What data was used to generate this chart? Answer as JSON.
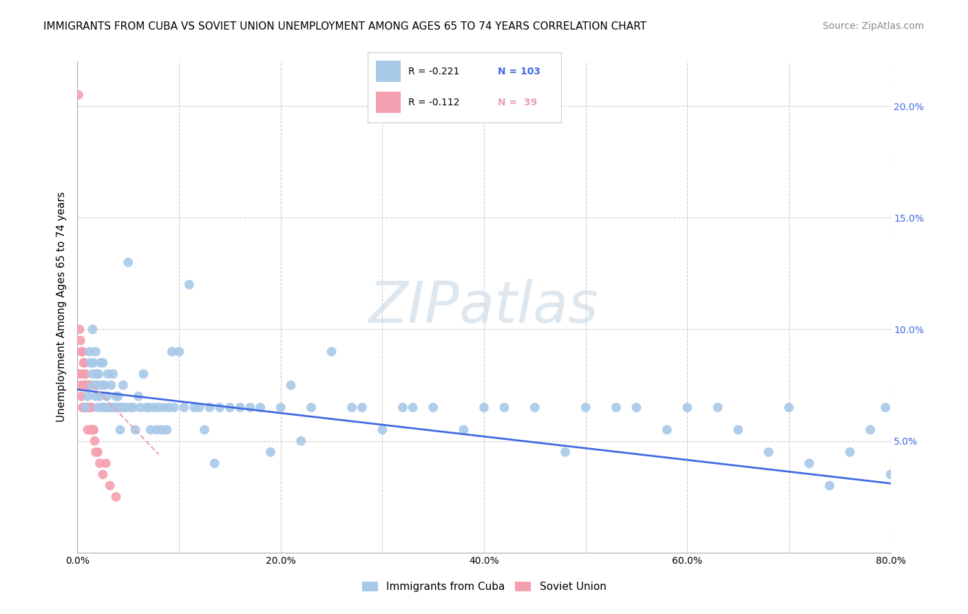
{
  "title": "IMMIGRANTS FROM CUBA VS SOVIET UNION UNEMPLOYMENT AMONG AGES 65 TO 74 YEARS CORRELATION CHART",
  "source": "Source: ZipAtlas.com",
  "ylabel": "Unemployment Among Ages 65 to 74 years",
  "watermark": "ZIPatlas",
  "xlim": [
    0.0,
    0.8
  ],
  "ylim": [
    0.0,
    0.22
  ],
  "xticks": [
    0.0,
    0.1,
    0.2,
    0.3,
    0.4,
    0.5,
    0.6,
    0.7,
    0.8
  ],
  "xticklabels": [
    "0.0%",
    "",
    "20.0%",
    "",
    "40.0%",
    "",
    "60.0%",
    "",
    "80.0%"
  ],
  "yticks": [
    0.0,
    0.05,
    0.1,
    0.15,
    0.2
  ],
  "yticklabels_left": [
    "",
    "",
    "",
    "",
    ""
  ],
  "yticklabels_right": [
    "",
    "5.0%",
    "10.0%",
    "15.0%",
    "20.0%"
  ],
  "legend_cuba_R": "R = -0.221",
  "legend_cuba_N": "N = 103",
  "legend_soviet_R": "R = -0.112",
  "legend_soviet_N": "N =  39",
  "cuba_color": "#a8c8e8",
  "soviet_color": "#f4a0b0",
  "cuba_line_color": "#4169e1",
  "soviet_line_color": "#e8a0b0",
  "background_color": "#ffffff",
  "grid_color": "#cccccc",
  "cuba_x": [
    0.008,
    0.01,
    0.012,
    0.013,
    0.014,
    0.015,
    0.015,
    0.016,
    0.017,
    0.018,
    0.018,
    0.019,
    0.02,
    0.02,
    0.021,
    0.022,
    0.023,
    0.024,
    0.025,
    0.025,
    0.026,
    0.027,
    0.028,
    0.029,
    0.03,
    0.031,
    0.033,
    0.034,
    0.035,
    0.036,
    0.038,
    0.039,
    0.04,
    0.041,
    0.042,
    0.043,
    0.045,
    0.046,
    0.048,
    0.05,
    0.052,
    0.055,
    0.057,
    0.06,
    0.062,
    0.065,
    0.068,
    0.07,
    0.072,
    0.075,
    0.078,
    0.08,
    0.083,
    0.085,
    0.088,
    0.09,
    0.093,
    0.095,
    0.1,
    0.105,
    0.11,
    0.115,
    0.12,
    0.125,
    0.13,
    0.135,
    0.14,
    0.15,
    0.16,
    0.17,
    0.18,
    0.19,
    0.2,
    0.21,
    0.22,
    0.23,
    0.25,
    0.27,
    0.28,
    0.3,
    0.32,
    0.33,
    0.35,
    0.38,
    0.4,
    0.42,
    0.45,
    0.48,
    0.5,
    0.53,
    0.55,
    0.58,
    0.6,
    0.63,
    0.65,
    0.68,
    0.7,
    0.72,
    0.74,
    0.76,
    0.78,
    0.795,
    0.8
  ],
  "cuba_y": [
    0.065,
    0.07,
    0.09,
    0.085,
    0.075,
    0.1,
    0.08,
    0.085,
    0.075,
    0.09,
    0.07,
    0.08,
    0.065,
    0.075,
    0.08,
    0.07,
    0.085,
    0.065,
    0.075,
    0.085,
    0.065,
    0.075,
    0.065,
    0.07,
    0.08,
    0.065,
    0.075,
    0.065,
    0.08,
    0.065,
    0.07,
    0.065,
    0.07,
    0.065,
    0.055,
    0.065,
    0.075,
    0.065,
    0.065,
    0.13,
    0.065,
    0.065,
    0.055,
    0.07,
    0.065,
    0.08,
    0.065,
    0.065,
    0.055,
    0.065,
    0.055,
    0.065,
    0.055,
    0.065,
    0.055,
    0.065,
    0.09,
    0.065,
    0.09,
    0.065,
    0.12,
    0.065,
    0.065,
    0.055,
    0.065,
    0.04,
    0.065,
    0.065,
    0.065,
    0.065,
    0.065,
    0.045,
    0.065,
    0.075,
    0.05,
    0.065,
    0.09,
    0.065,
    0.065,
    0.055,
    0.065,
    0.065,
    0.065,
    0.055,
    0.065,
    0.065,
    0.065,
    0.045,
    0.065,
    0.065,
    0.065,
    0.055,
    0.065,
    0.065,
    0.055,
    0.045,
    0.065,
    0.04,
    0.03,
    0.045,
    0.055,
    0.065,
    0.035
  ],
  "soviet_x": [
    0.001,
    0.002,
    0.002,
    0.003,
    0.003,
    0.004,
    0.004,
    0.005,
    0.005,
    0.005,
    0.006,
    0.006,
    0.006,
    0.007,
    0.007,
    0.007,
    0.008,
    0.008,
    0.009,
    0.009,
    0.01,
    0.01,
    0.01,
    0.011,
    0.011,
    0.012,
    0.013,
    0.013,
    0.014,
    0.015,
    0.016,
    0.017,
    0.018,
    0.02,
    0.022,
    0.025,
    0.028,
    0.032,
    0.038
  ],
  "soviet_y": [
    0.205,
    0.1,
    0.08,
    0.095,
    0.075,
    0.09,
    0.07,
    0.09,
    0.08,
    0.065,
    0.085,
    0.075,
    0.065,
    0.085,
    0.075,
    0.065,
    0.08,
    0.065,
    0.075,
    0.065,
    0.075,
    0.065,
    0.055,
    0.075,
    0.065,
    0.065,
    0.065,
    0.055,
    0.065,
    0.055,
    0.055,
    0.05,
    0.045,
    0.045,
    0.04,
    0.035,
    0.04,
    0.03,
    0.025
  ],
  "cuba_line_start_x": 0.0,
  "cuba_line_start_y": 0.073,
  "cuba_line_end_x": 0.8,
  "cuba_line_end_y": 0.031,
  "soviet_line_start_x": 0.0,
  "soviet_line_start_y": 0.082,
  "soviet_line_end_x": 0.08,
  "soviet_line_end_y": 0.044,
  "title_fontsize": 11,
  "axis_label_fontsize": 11,
  "tick_fontsize": 10,
  "source_fontsize": 10
}
